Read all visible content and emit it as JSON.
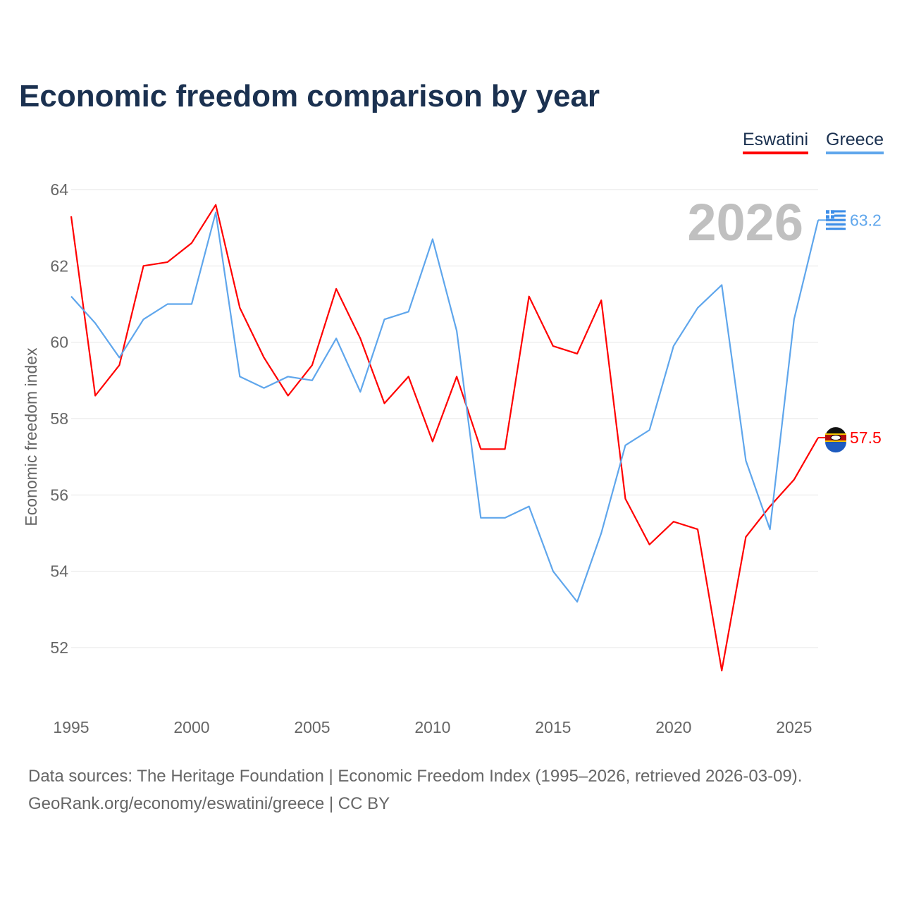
{
  "chart_data": {
    "type": "line",
    "title": "Economic freedom comparison by year",
    "xlabel": "",
    "ylabel": "Economic freedom index",
    "xlim": [
      1995,
      2026
    ],
    "ylim": [
      50.6,
      64
    ],
    "yticks": [
      52,
      54,
      56,
      58,
      60,
      62,
      64
    ],
    "xticks": [
      1995,
      2000,
      2005,
      2010,
      2015,
      2020,
      2025
    ],
    "grid": true,
    "legend_position": "top-right",
    "year_label": "2026",
    "x": [
      1995,
      1996,
      1997,
      1998,
      1999,
      2000,
      2001,
      2002,
      2003,
      2004,
      2005,
      2006,
      2007,
      2008,
      2009,
      2010,
      2011,
      2012,
      2013,
      2014,
      2015,
      2016,
      2017,
      2018,
      2019,
      2020,
      2021,
      2022,
      2023,
      2024,
      2025,
      2026
    ],
    "series": [
      {
        "name": "Eswatini",
        "color": "#ff0000",
        "end_label": "57.5",
        "values": [
          63.3,
          58.6,
          59.4,
          62.0,
          62.1,
          62.6,
          63.6,
          60.9,
          59.6,
          58.6,
          59.4,
          61.4,
          60.1,
          58.4,
          59.1,
          57.4,
          59.1,
          57.2,
          57.2,
          61.2,
          59.9,
          59.7,
          61.1,
          55.9,
          54.7,
          55.3,
          55.1,
          51.4,
          54.9,
          55.7,
          56.4,
          57.5
        ]
      },
      {
        "name": "Greece",
        "color": "#5fa6ec",
        "end_label": "63.2",
        "values": [
          61.2,
          60.5,
          59.6,
          60.6,
          61.0,
          61.0,
          63.4,
          59.1,
          58.8,
          59.1,
          59.0,
          60.1,
          58.7,
          60.6,
          60.8,
          62.7,
          60.3,
          55.4,
          55.4,
          55.7,
          54.0,
          53.2,
          55.0,
          57.3,
          57.7,
          59.9,
          60.9,
          61.5,
          56.9,
          55.1,
          60.6,
          63.2
        ]
      }
    ]
  },
  "footer": {
    "line1": "Data sources: The Heritage Foundation | Economic Freedom Index (1995–2026, retrieved 2026-03-09).",
    "line2": "GeoRank.org/economy/eswatini/greece | CC BY"
  }
}
